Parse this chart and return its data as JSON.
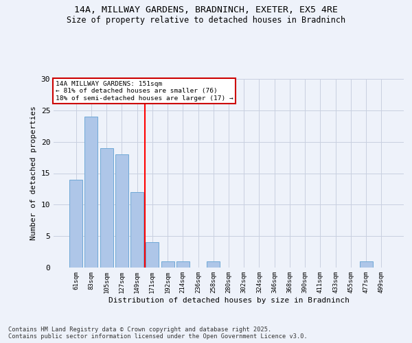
{
  "title_line1": "14A, MILLWAY GARDENS, BRADNINCH, EXETER, EX5 4RE",
  "title_line2": "Size of property relative to detached houses in Bradninch",
  "xlabel": "Distribution of detached houses by size in Bradninch",
  "ylabel": "Number of detached properties",
  "categories": [
    "61sqm",
    "83sqm",
    "105sqm",
    "127sqm",
    "149sqm",
    "171sqm",
    "192sqm",
    "214sqm",
    "236sqm",
    "258sqm",
    "280sqm",
    "302sqm",
    "324sqm",
    "346sqm",
    "368sqm",
    "390sqm",
    "411sqm",
    "433sqm",
    "455sqm",
    "477sqm",
    "499sqm"
  ],
  "values": [
    14,
    24,
    19,
    18,
    12,
    4,
    1,
    1,
    0,
    1,
    0,
    0,
    0,
    0,
    0,
    0,
    0,
    0,
    0,
    1,
    0
  ],
  "bar_color": "#aec6e8",
  "bar_edge_color": "#6fa8d6",
  "background_color": "#eef2fa",
  "grid_color": "#c8cfe0",
  "red_line_x": 4.5,
  "annotation_text_line1": "14A MILLWAY GARDENS: 151sqm",
  "annotation_text_line2": "← 81% of detached houses are smaller (76)",
  "annotation_text_line3": "18% of semi-detached houses are larger (17) →",
  "annotation_box_color": "#ffffff",
  "annotation_box_edge": "#cc0000",
  "ylim": [
    0,
    30
  ],
  "yticks": [
    0,
    5,
    10,
    15,
    20,
    25,
    30
  ],
  "footer_line1": "Contains HM Land Registry data © Crown copyright and database right 2025.",
  "footer_line2": "Contains public sector information licensed under the Open Government Licence v3.0."
}
